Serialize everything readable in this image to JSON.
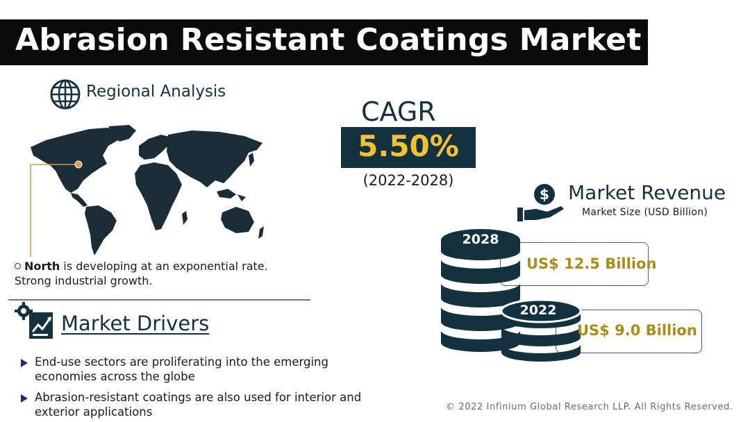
{
  "header": {
    "title": "Abrasion Resistant Coatings Market"
  },
  "regional": {
    "title": "Regional Analysis",
    "icon": "globe-icon",
    "note_bold": "North",
    "note_rest": " is developing at an exponential rate. Strong industrial growth."
  },
  "drivers": {
    "title": "Market Drivers",
    "icon": "gear-chart-icon",
    "items": [
      "End-use sectors are proliferating into the emerging economies across the globe",
      "Abrasion-resistant coatings are also used for interior and exterior applications"
    ]
  },
  "cagr": {
    "label": "CAGR",
    "value": "5.50%",
    "period": "(2022-2028)"
  },
  "revenue": {
    "title": "Market Revenue",
    "subtitle": "Market Size (USD Billion)",
    "icon": "dollar-hand-icon",
    "entries": [
      {
        "year": "2028",
        "value": "US$ 12.5 Billion"
      },
      {
        "year": "2022",
        "value": "US$ 9.0 Billion"
      }
    ]
  },
  "footer": {
    "copyright": "© 2022 Infinium Global Research LLP. All Rights Reserved."
  },
  "colors": {
    "navy": "#14313f",
    "gold": "#f2c230",
    "olive_gold": "#a88d1c",
    "black": "#0b0b0b"
  }
}
